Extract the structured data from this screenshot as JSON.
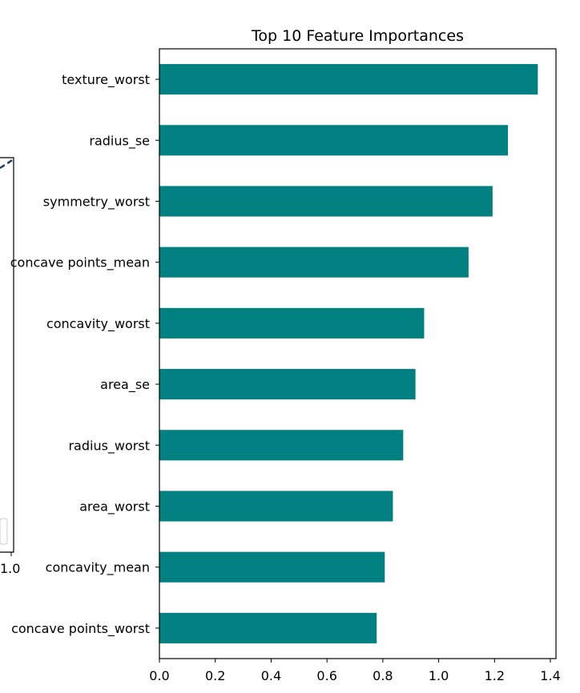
{
  "colors": {
    "bar": "#008080",
    "axis": "#000000",
    "background": "#ffffff"
  },
  "background_chart": {
    "visible_tick_label": "1.0"
  },
  "chart_data": {
    "type": "bar",
    "orientation": "horizontal",
    "title": "Top 10 Feature Importances",
    "xlabel": "",
    "ylabel": "",
    "xlim": [
      0,
      1.42
    ],
    "xticks": [
      "0.0",
      "0.2",
      "0.4",
      "0.6",
      "0.8",
      "1.0",
      "1.2",
      "1.4"
    ],
    "grid": false,
    "legend": "none",
    "categories": [
      "texture_worst",
      "radius_se",
      "symmetry_worst",
      "concave points_mean",
      "concavity_worst",
      "area_se",
      "radius_worst",
      "area_worst",
      "concavity_mean",
      "concave points_worst"
    ],
    "values": [
      1.355,
      1.248,
      1.193,
      1.107,
      0.948,
      0.917,
      0.873,
      0.836,
      0.807,
      0.778
    ]
  }
}
